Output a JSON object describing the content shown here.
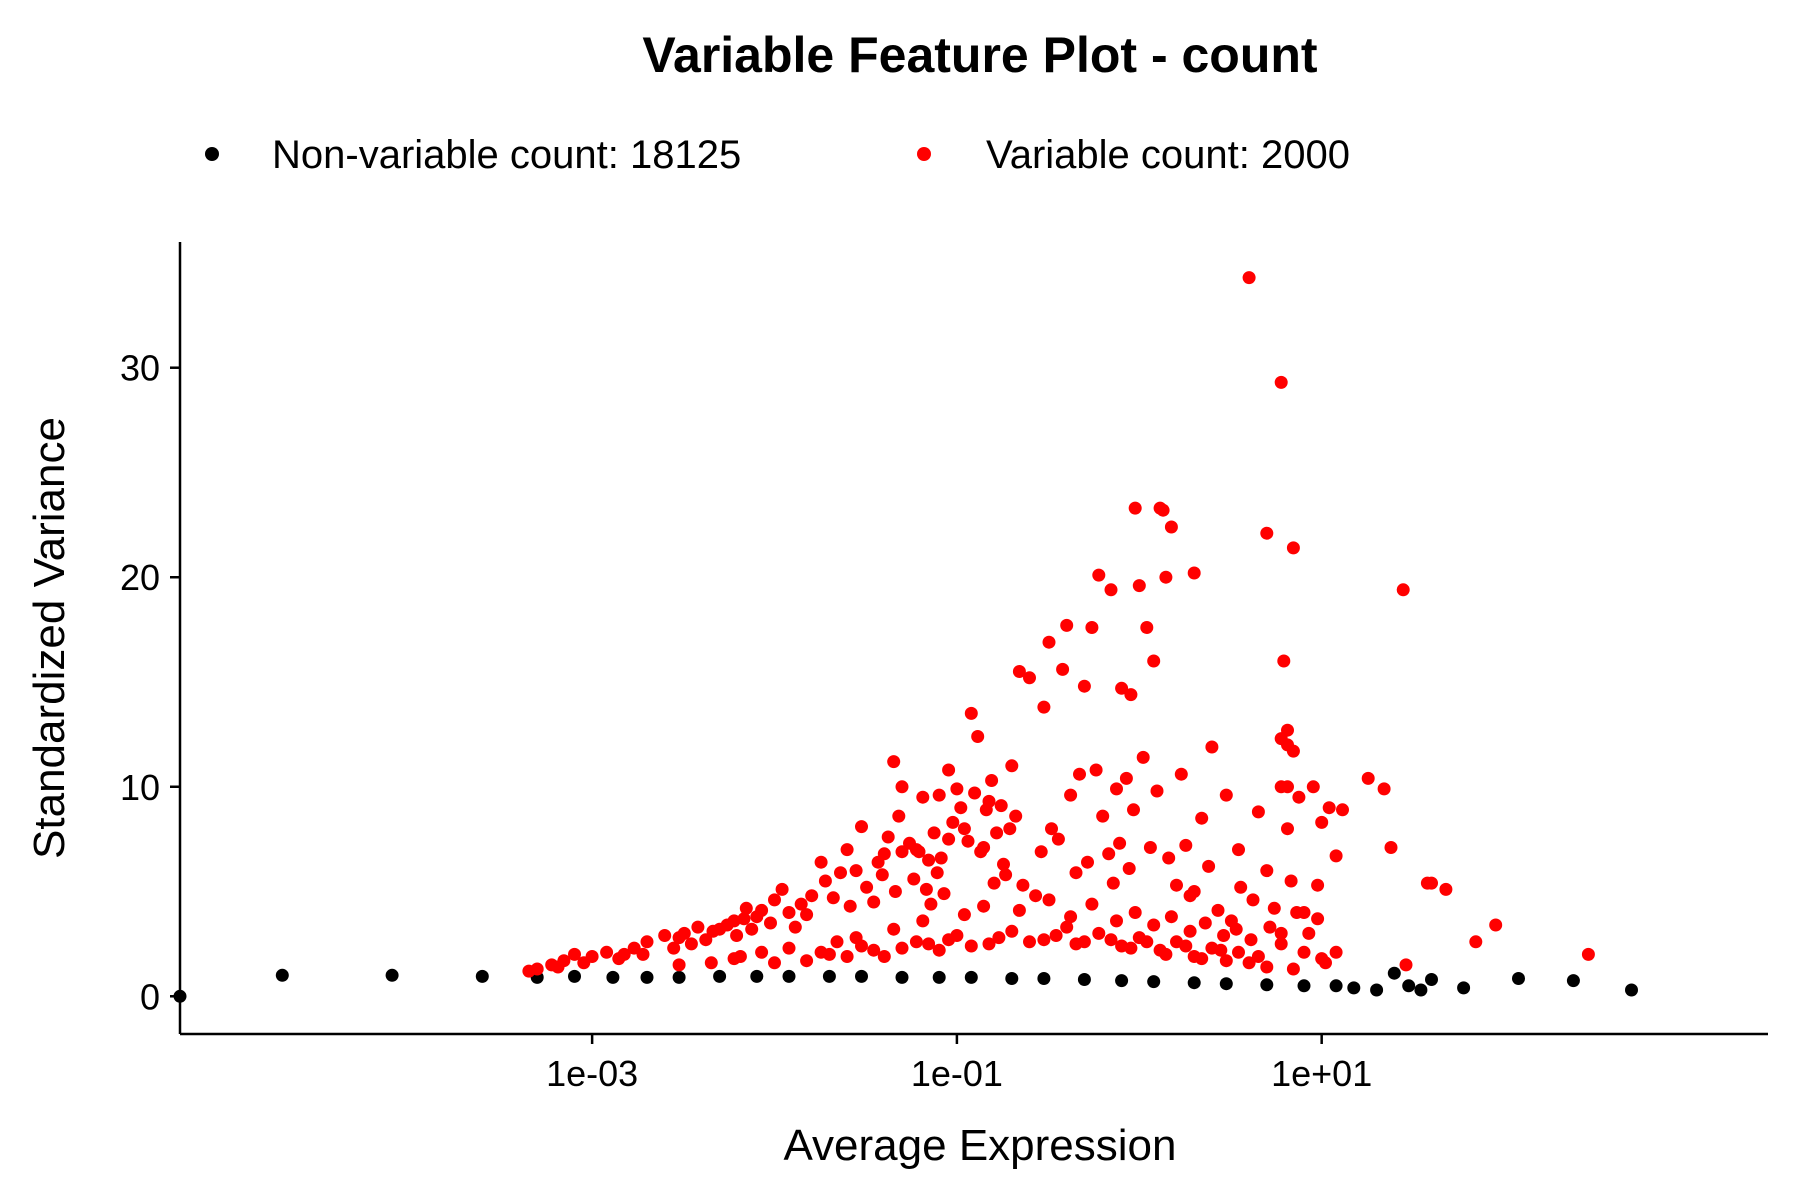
{
  "chart_data": {
    "type": "scatter",
    "title": "Variable Feature Plot - count",
    "xlabel": "Average Expression",
    "ylabel": "Standardized Variance",
    "x_scale": "log10",
    "xlim": [
      5.5e-06,
      2800
    ],
    "ylim": [
      -1.8,
      36
    ],
    "x_ticks": [
      0.001,
      0.1,
      10
    ],
    "x_tick_labels": [
      "1e-03",
      "1e-01",
      "1e+01"
    ],
    "y_ticks": [
      0,
      10,
      20,
      30
    ],
    "y_tick_labels": [
      "0",
      "10",
      "20",
      "30"
    ],
    "grid": false,
    "legend_position": "top",
    "series": [
      {
        "name": "Non-variable count: 18125",
        "color": "#000000",
        "points": [
          [
            5.5e-06,
            0.0
          ],
          [
            2e-05,
            1.0
          ],
          [
            8e-05,
            1.0
          ],
          [
            0.00025,
            0.95
          ],
          [
            0.0005,
            0.9
          ],
          [
            0.0008,
            0.95
          ],
          [
            0.0013,
            0.9
          ],
          [
            0.002,
            0.9
          ],
          [
            0.003,
            0.9
          ],
          [
            0.005,
            0.95
          ],
          [
            0.008,
            0.95
          ],
          [
            0.012,
            0.95
          ],
          [
            0.02,
            0.95
          ],
          [
            0.03,
            0.95
          ],
          [
            0.05,
            0.9
          ],
          [
            0.08,
            0.9
          ],
          [
            0.12,
            0.9
          ],
          [
            0.2,
            0.85
          ],
          [
            0.3,
            0.85
          ],
          [
            0.5,
            0.8
          ],
          [
            0.8,
            0.75
          ],
          [
            1.2,
            0.7
          ],
          [
            2,
            0.65
          ],
          [
            3,
            0.6
          ],
          [
            5,
            0.55
          ],
          [
            8,
            0.5
          ],
          [
            12,
            0.5
          ],
          [
            15,
            0.4
          ],
          [
            20,
            0.3
          ],
          [
            25,
            1.1
          ],
          [
            30,
            0.5
          ],
          [
            35,
            0.3
          ],
          [
            40,
            0.8
          ],
          [
            60,
            0.4
          ],
          [
            120,
            0.85
          ],
          [
            240,
            0.75
          ],
          [
            500,
            0.3
          ]
        ]
      },
      {
        "name": "Variable count: 2000",
        "color": "#ff0000",
        "points": [
          [
            0.0005,
            1.3
          ],
          [
            0.0008,
            2.0
          ],
          [
            0.0015,
            2.0
          ],
          [
            0.003,
            2.8
          ],
          [
            0.005,
            3.2
          ],
          [
            0.01,
            4.6
          ],
          [
            0.018,
            6.4
          ],
          [
            0.025,
            7.0
          ],
          [
            0.03,
            8.1
          ],
          [
            0.045,
            11.2
          ],
          [
            0.05,
            10.0
          ],
          [
            0.09,
            10.8
          ],
          [
            0.12,
            13.5
          ],
          [
            0.13,
            12.4
          ],
          [
            0.15,
            9.3
          ],
          [
            0.2,
            11.0
          ],
          [
            0.22,
            15.5
          ],
          [
            0.25,
            15.2
          ],
          [
            0.3,
            13.8
          ],
          [
            0.32,
            16.9
          ],
          [
            0.38,
            15.6
          ],
          [
            0.4,
            17.7
          ],
          [
            0.5,
            14.8
          ],
          [
            0.55,
            17.6
          ],
          [
            0.6,
            20.1
          ],
          [
            0.7,
            19.4
          ],
          [
            0.8,
            14.7
          ],
          [
            0.9,
            14.4
          ],
          [
            0.95,
            23.3
          ],
          [
            1.0,
            19.6
          ],
          [
            1.1,
            17.6
          ],
          [
            1.2,
            16.0
          ],
          [
            1.3,
            23.3
          ],
          [
            1.35,
            23.2
          ],
          [
            1.4,
            20.0
          ],
          [
            1.5,
            22.4
          ],
          [
            2.0,
            20.2
          ],
          [
            2.5,
            11.9
          ],
          [
            4.0,
            34.3
          ],
          [
            5.0,
            22.1
          ],
          [
            6.0,
            29.3
          ],
          [
            6.2,
            16.0
          ],
          [
            6.0,
            12.3
          ],
          [
            7.0,
            21.4
          ],
          [
            7.5,
            9.5
          ],
          [
            9.0,
            10.0
          ],
          [
            6.5,
            8.0
          ],
          [
            5.0,
            6.0
          ],
          [
            6.0,
            3.0
          ],
          [
            6.5,
            12.0
          ],
          [
            3.5,
            7.0
          ],
          [
            2.0,
            5.0
          ],
          [
            8.0,
            4.0
          ],
          [
            6.5,
            10.0
          ],
          [
            7.0,
            1.3
          ],
          [
            9.5,
            3.7
          ],
          [
            6.0,
            2.5
          ],
          [
            5.5,
            4.2
          ],
          [
            8.0,
            2.1
          ],
          [
            10.0,
            1.8
          ],
          [
            6.5,
            12.7
          ],
          [
            7.0,
            11.7
          ],
          [
            6.0,
            10.0
          ],
          [
            6.8,
            5.5
          ],
          [
            7.3,
            4.0
          ],
          [
            8.5,
            3.0
          ],
          [
            9.5,
            5.3
          ],
          [
            10.5,
            1.6
          ],
          [
            10.0,
            8.3
          ],
          [
            11.0,
            9.0
          ],
          [
            12.0,
            6.7
          ],
          [
            13.0,
            8.9
          ],
          [
            12.0,
            2.1
          ],
          [
            18.0,
            10.4
          ],
          [
            22.0,
            9.9
          ],
          [
            24.0,
            7.1
          ],
          [
            28.0,
            19.4
          ],
          [
            29.0,
            1.5
          ],
          [
            38.0,
            5.4
          ],
          [
            40.0,
            5.4
          ],
          [
            48.0,
            5.1
          ],
          [
            70.0,
            2.6
          ],
          [
            90.0,
            3.4
          ],
          [
            290.0,
            2.0
          ],
          [
            0.04,
            6.8
          ],
          [
            0.05,
            6.9
          ],
          [
            0.06,
            7.0
          ],
          [
            0.07,
            6.5
          ],
          [
            0.08,
            9.6
          ],
          [
            0.09,
            7.5
          ],
          [
            0.1,
            9.9
          ],
          [
            0.11,
            8.0
          ],
          [
            0.14,
            7.1
          ],
          [
            0.16,
            5.4
          ],
          [
            0.18,
            6.3
          ],
          [
            0.21,
            8.6
          ],
          [
            0.23,
            5.3
          ],
          [
            0.27,
            4.8
          ],
          [
            0.29,
            6.9
          ],
          [
            0.33,
            8.0
          ],
          [
            0.36,
            7.5
          ],
          [
            0.42,
            9.6
          ],
          [
            0.45,
            5.9
          ],
          [
            0.47,
            10.6
          ],
          [
            0.52,
            6.4
          ],
          [
            0.58,
            10.8
          ],
          [
            0.63,
            8.6
          ],
          [
            0.68,
            6.8
          ],
          [
            0.72,
            5.4
          ],
          [
            0.75,
            9.9
          ],
          [
            0.78,
            7.3
          ],
          [
            0.85,
            10.4
          ],
          [
            0.88,
            6.1
          ],
          [
            0.93,
            8.9
          ],
          [
            1.05,
            11.4
          ],
          [
            1.15,
            7.1
          ],
          [
            1.25,
            9.8
          ],
          [
            1.45,
            6.6
          ],
          [
            1.6,
            5.3
          ],
          [
            1.7,
            10.6
          ],
          [
            1.8,
            7.2
          ],
          [
            1.9,
            4.8
          ],
          [
            2.2,
            8.5
          ],
          [
            2.4,
            6.2
          ],
          [
            2.7,
            4.1
          ],
          [
            3.0,
            9.6
          ],
          [
            3.2,
            3.6
          ],
          [
            3.6,
            5.2
          ],
          [
            4.2,
            4.6
          ],
          [
            4.5,
            8.8
          ],
          [
            5.2,
            3.3
          ],
          [
            0.006,
            3.6
          ],
          [
            0.007,
            4.2
          ],
          [
            0.008,
            3.8
          ],
          [
            0.011,
            5.1
          ],
          [
            0.012,
            4.0
          ],
          [
            0.013,
            3.3
          ],
          [
            0.014,
            4.4
          ],
          [
            0.015,
            3.9
          ],
          [
            0.016,
            4.8
          ],
          [
            0.019,
            5.5
          ],
          [
            0.021,
            4.7
          ],
          [
            0.023,
            5.9
          ],
          [
            0.026,
            4.3
          ],
          [
            0.028,
            6.0
          ],
          [
            0.032,
            5.2
          ],
          [
            0.035,
            4.5
          ],
          [
            0.037,
            6.4
          ],
          [
            0.039,
            5.8
          ],
          [
            0.042,
            7.6
          ],
          [
            0.046,
            5.0
          ],
          [
            0.048,
            8.6
          ],
          [
            0.055,
            7.3
          ],
          [
            0.058,
            5.6
          ],
          [
            0.062,
            6.9
          ],
          [
            0.065,
            9.5
          ],
          [
            0.068,
            5.1
          ],
          [
            0.072,
            4.4
          ],
          [
            0.075,
            7.8
          ],
          [
            0.078,
            5.9
          ],
          [
            0.082,
            6.6
          ],
          [
            0.085,
            4.9
          ],
          [
            0.095,
            8.3
          ],
          [
            0.105,
            9.0
          ],
          [
            0.115,
            7.4
          ],
          [
            0.125,
            9.7
          ],
          [
            0.135,
            6.9
          ],
          [
            0.145,
            8.9
          ],
          [
            0.155,
            10.3
          ],
          [
            0.165,
            7.8
          ],
          [
            0.175,
            9.1
          ],
          [
            0.185,
            5.8
          ],
          [
            0.195,
            8.0
          ],
          [
            0.002,
            2.6
          ],
          [
            0.0025,
            2.9
          ],
          [
            0.0028,
            2.3
          ],
          [
            0.0032,
            3.0
          ],
          [
            0.0035,
            2.5
          ],
          [
            0.0038,
            3.3
          ],
          [
            0.0042,
            2.7
          ],
          [
            0.0046,
            3.1
          ],
          [
            0.0055,
            3.4
          ],
          [
            0.0062,
            2.9
          ],
          [
            0.0068,
            3.7
          ],
          [
            0.0075,
            3.2
          ],
          [
            0.0085,
            4.1
          ],
          [
            0.0095,
            3.5
          ],
          [
            0.001,
            1.9
          ],
          [
            0.0012,
            2.1
          ],
          [
            0.0014,
            1.8
          ],
          [
            0.0017,
            2.3
          ],
          [
            0.0019,
            2.0
          ],
          [
            0.0006,
            1.5
          ],
          [
            0.0007,
            1.7
          ],
          [
            0.0009,
            1.6
          ],
          [
            0.00045,
            1.2
          ],
          [
            0.00065,
            1.4
          ],
          [
            0.003,
            1.5
          ],
          [
            0.006,
            1.8
          ],
          [
            0.01,
            1.6
          ],
          [
            0.02,
            2.0
          ],
          [
            0.03,
            2.4
          ],
          [
            0.04,
            1.9
          ],
          [
            0.06,
            2.6
          ],
          [
            0.08,
            2.2
          ],
          [
            0.1,
            2.9
          ],
          [
            0.15,
            2.5
          ],
          [
            0.2,
            3.1
          ],
          [
            0.3,
            2.7
          ],
          [
            0.4,
            3.3
          ],
          [
            0.5,
            2.6
          ],
          [
            0.6,
            3.0
          ],
          [
            0.8,
            2.4
          ],
          [
            1.0,
            2.8
          ],
          [
            1.3,
            2.2
          ],
          [
            1.6,
            2.6
          ],
          [
            2.0,
            1.9
          ],
          [
            2.5,
            2.3
          ],
          [
            3.0,
            1.7
          ],
          [
            3.5,
            2.1
          ],
          [
            4.0,
            1.6
          ],
          [
            4.5,
            1.9
          ],
          [
            5.0,
            1.4
          ],
          [
            0.015,
            1.7
          ],
          [
            0.025,
            1.9
          ],
          [
            0.035,
            2.2
          ],
          [
            0.05,
            2.3
          ],
          [
            0.07,
            2.5
          ],
          [
            0.09,
            2.7
          ],
          [
            0.12,
            2.4
          ],
          [
            0.17,
            2.8
          ],
          [
            0.25,
            2.6
          ],
          [
            0.35,
            2.9
          ],
          [
            0.45,
            2.5
          ],
          [
            0.7,
            2.7
          ],
          [
            0.9,
            2.3
          ],
          [
            1.1,
            2.6
          ],
          [
            1.4,
            2.0
          ],
          [
            1.8,
            2.4
          ],
          [
            2.2,
            1.8
          ],
          [
            2.8,
            2.2
          ],
          [
            0.0045,
            1.6
          ],
          [
            0.0065,
            1.9
          ],
          [
            0.0085,
            2.1
          ],
          [
            0.012,
            2.3
          ],
          [
            0.018,
            2.1
          ],
          [
            0.022,
            2.6
          ],
          [
            0.028,
            2.8
          ],
          [
            0.045,
            3.2
          ],
          [
            0.065,
            3.6
          ],
          [
            0.11,
            3.9
          ],
          [
            0.14,
            4.3
          ],
          [
            0.22,
            4.1
          ],
          [
            0.32,
            4.6
          ],
          [
            0.42,
            3.8
          ],
          [
            0.55,
            4.4
          ],
          [
            0.75,
            3.6
          ],
          [
            0.95,
            4.0
          ],
          [
            1.2,
            3.4
          ],
          [
            1.5,
            3.8
          ],
          [
            1.9,
            3.1
          ],
          [
            2.3,
            3.5
          ],
          [
            2.9,
            2.9
          ],
          [
            3.4,
            3.2
          ],
          [
            4.1,
            2.7
          ]
        ]
      }
    ]
  }
}
